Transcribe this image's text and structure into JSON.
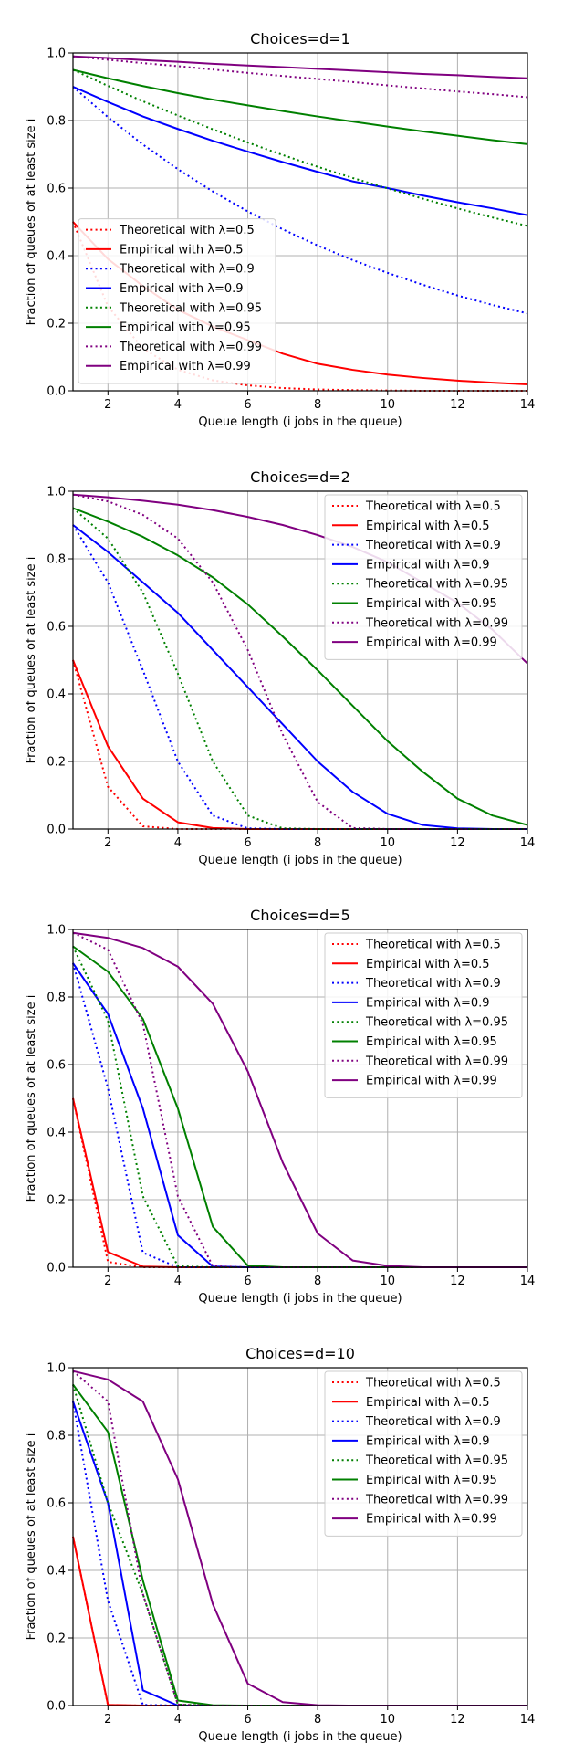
{
  "colors": {
    "red": "#ff0000",
    "blue": "#0000ff",
    "green": "#008000",
    "purple": "#800080",
    "grid": "#b0b0b0"
  },
  "chart_data": [
    {
      "type": "line",
      "title": "Choices=d=1",
      "xlabel": "Queue length (i jobs in the queue)",
      "ylabel": "Fraction of queues of at least size i",
      "xlim": [
        1,
        14
      ],
      "ylim": [
        0,
        1
      ],
      "xticks": [
        2,
        4,
        6,
        8,
        10,
        12,
        14
      ],
      "yticks": [
        0.0,
        0.2,
        0.4,
        0.6,
        0.8,
        1.0
      ],
      "xtick_labels": [
        "2",
        "4",
        "6",
        "8",
        "10",
        "12",
        "14"
      ],
      "ytick_labels": [
        "0.0",
        "0.2",
        "0.4",
        "0.6",
        "0.8",
        "1.0"
      ],
      "grid": true,
      "legend_position": "lower-left",
      "x": [
        1,
        2,
        3,
        4,
        5,
        6,
        7,
        8,
        9,
        10,
        11,
        12,
        13,
        14
      ],
      "series": [
        {
          "name": "Theoretical with λ=0.5",
          "color": "red",
          "style": "dotted",
          "values": [
            0.5,
            0.25,
            0.125,
            0.0625,
            0.031,
            0.016,
            0.008,
            0.004,
            0.002,
            0.001,
            0.0,
            0.0,
            0.0,
            0.0
          ]
        },
        {
          "name": "Empirical with λ=0.5",
          "color": "red",
          "style": "solid",
          "values": [
            0.5,
            0.39,
            0.31,
            0.24,
            0.19,
            0.15,
            0.11,
            0.08,
            0.062,
            0.048,
            0.038,
            0.03,
            0.024,
            0.019
          ]
        },
        {
          "name": "Theoretical with λ=0.9",
          "color": "blue",
          "style": "dotted",
          "values": [
            0.9,
            0.81,
            0.729,
            0.656,
            0.59,
            0.531,
            0.478,
            0.43,
            0.387,
            0.349,
            0.314,
            0.282,
            0.254,
            0.229
          ]
        },
        {
          "name": "Empirical with λ=0.9",
          "color": "blue",
          "style": "solid",
          "values": [
            0.9,
            0.855,
            0.812,
            0.775,
            0.74,
            0.708,
            0.677,
            0.648,
            0.62,
            0.6,
            0.578,
            0.558,
            0.54,
            0.52
          ]
        },
        {
          "name": "Theoretical with λ=0.95",
          "color": "green",
          "style": "dotted",
          "values": [
            0.95,
            0.9025,
            0.857,
            0.815,
            0.774,
            0.735,
            0.698,
            0.663,
            0.63,
            0.599,
            0.569,
            0.54,
            0.513,
            0.488
          ]
        },
        {
          "name": "Empirical with λ=0.95",
          "color": "green",
          "style": "solid",
          "values": [
            0.95,
            0.925,
            0.902,
            0.881,
            0.862,
            0.845,
            0.828,
            0.812,
            0.797,
            0.782,
            0.768,
            0.755,
            0.742,
            0.73
          ]
        },
        {
          "name": "Theoretical with λ=0.99",
          "color": "purple",
          "style": "dotted",
          "values": [
            0.99,
            0.98,
            0.97,
            0.961,
            0.951,
            0.941,
            0.932,
            0.923,
            0.914,
            0.904,
            0.895,
            0.886,
            0.878,
            0.869
          ]
        },
        {
          "name": "Empirical with λ=0.99",
          "color": "purple",
          "style": "solid",
          "values": [
            0.99,
            0.985,
            0.979,
            0.974,
            0.968,
            0.963,
            0.958,
            0.953,
            0.948,
            0.943,
            0.938,
            0.934,
            0.929,
            0.925
          ]
        }
      ]
    },
    {
      "type": "line",
      "title": "Choices=d=2",
      "xlabel": "Queue length (i jobs in the queue)",
      "ylabel": "Fraction of queues of at least size i",
      "xlim": [
        1,
        14
      ],
      "ylim": [
        0,
        1
      ],
      "xticks": [
        2,
        4,
        6,
        8,
        10,
        12,
        14
      ],
      "yticks": [
        0.0,
        0.2,
        0.4,
        0.6,
        0.8,
        1.0
      ],
      "xtick_labels": [
        "2",
        "4",
        "6",
        "8",
        "10",
        "12",
        "14"
      ],
      "ytick_labels": [
        "0.0",
        "0.2",
        "0.4",
        "0.6",
        "0.8",
        "1.0"
      ],
      "grid": true,
      "legend_position": "top-right",
      "x": [
        1,
        2,
        3,
        4,
        5,
        6,
        7,
        8,
        9,
        10,
        11,
        12,
        13,
        14
      ],
      "series": [
        {
          "name": "Theoretical with λ=0.5",
          "color": "red",
          "style": "dotted",
          "values": [
            0.5,
            0.125,
            0.008,
            0.0,
            0.0,
            0.0,
            0.0,
            0.0,
            0.0,
            0.0,
            0.0,
            0.0,
            0.0,
            0.0
          ]
        },
        {
          "name": "Empirical with λ=0.5",
          "color": "red",
          "style": "solid",
          "values": [
            0.5,
            0.245,
            0.09,
            0.02,
            0.003,
            0.0,
            0.0,
            0.0,
            0.0,
            0.0,
            0.0,
            0.0,
            0.0,
            0.0
          ]
        },
        {
          "name": "Theoretical with λ=0.9",
          "color": "blue",
          "style": "dotted",
          "values": [
            0.9,
            0.73,
            0.47,
            0.2,
            0.04,
            0.002,
            0.0,
            0.0,
            0.0,
            0.0,
            0.0,
            0.0,
            0.0,
            0.0
          ]
        },
        {
          "name": "Empirical with λ=0.9",
          "color": "blue",
          "style": "solid",
          "values": [
            0.9,
            0.82,
            0.73,
            0.64,
            0.53,
            0.42,
            0.31,
            0.2,
            0.11,
            0.045,
            0.012,
            0.002,
            0.0,
            0.0
          ]
        },
        {
          "name": "Theoretical with λ=0.95",
          "color": "green",
          "style": "dotted",
          "values": [
            0.95,
            0.86,
            0.7,
            0.46,
            0.2,
            0.04,
            0.002,
            0.0,
            0.0,
            0.0,
            0.0,
            0.0,
            0.0,
            0.0
          ]
        },
        {
          "name": "Empirical with λ=0.95",
          "color": "green",
          "style": "solid",
          "values": [
            0.95,
            0.91,
            0.865,
            0.81,
            0.745,
            0.665,
            0.57,
            0.47,
            0.365,
            0.26,
            0.17,
            0.09,
            0.04,
            0.012
          ]
        },
        {
          "name": "Theoretical with λ=0.99",
          "color": "purple",
          "style": "dotted",
          "values": [
            0.99,
            0.97,
            0.93,
            0.86,
            0.73,
            0.53,
            0.28,
            0.08,
            0.003,
            0.0,
            0.0,
            0.0,
            0.0,
            0.0
          ]
        },
        {
          "name": "Empirical with λ=0.99",
          "color": "purple",
          "style": "solid",
          "values": [
            0.99,
            0.982,
            0.972,
            0.96,
            0.944,
            0.924,
            0.9,
            0.87,
            0.835,
            0.79,
            0.73,
            0.67,
            0.59,
            0.49
          ]
        }
      ]
    },
    {
      "type": "line",
      "title": "Choices=d=5",
      "xlabel": "Queue length (i jobs in the queue)",
      "ylabel": "Fraction of queues of at least size i",
      "xlim": [
        1,
        14
      ],
      "ylim": [
        0,
        1
      ],
      "xticks": [
        2,
        4,
        6,
        8,
        10,
        12,
        14
      ],
      "yticks": [
        0.0,
        0.2,
        0.4,
        0.6,
        0.8,
        1.0
      ],
      "xtick_labels": [
        "2",
        "4",
        "6",
        "8",
        "10",
        "12",
        "14"
      ],
      "ytick_labels": [
        "0.0",
        "0.2",
        "0.4",
        "0.6",
        "0.8",
        "1.0"
      ],
      "grid": true,
      "legend_position": "top-right",
      "x": [
        1,
        2,
        3,
        4,
        5,
        6,
        7,
        8,
        9,
        10,
        11,
        12,
        13,
        14
      ],
      "series": [
        {
          "name": "Theoretical with λ=0.5",
          "color": "red",
          "style": "dotted",
          "values": [
            0.5,
            0.016,
            0.0,
            0.0,
            0.0,
            0.0,
            0.0,
            0.0,
            0.0,
            0.0,
            0.0,
            0.0,
            0.0,
            0.0
          ]
        },
        {
          "name": "Empirical with λ=0.5",
          "color": "red",
          "style": "solid",
          "values": [
            0.5,
            0.045,
            0.002,
            0.0,
            0.0,
            0.0,
            0.0,
            0.0,
            0.0,
            0.0,
            0.0,
            0.0,
            0.0,
            0.0
          ]
        },
        {
          "name": "Theoretical with λ=0.9",
          "color": "blue",
          "style": "dotted",
          "values": [
            0.9,
            0.53,
            0.043,
            0.0,
            0.0,
            0.0,
            0.0,
            0.0,
            0.0,
            0.0,
            0.0,
            0.0,
            0.0,
            0.0
          ]
        },
        {
          "name": "Empirical with λ=0.9",
          "color": "blue",
          "style": "solid",
          "values": [
            0.9,
            0.75,
            0.47,
            0.095,
            0.002,
            0.0,
            0.0,
            0.0,
            0.0,
            0.0,
            0.0,
            0.0,
            0.0,
            0.0
          ]
        },
        {
          "name": "Theoretical with λ=0.95",
          "color": "green",
          "style": "dotted",
          "values": [
            0.95,
            0.73,
            0.21,
            0.003,
            0.0,
            0.0,
            0.0,
            0.0,
            0.0,
            0.0,
            0.0,
            0.0,
            0.0,
            0.0
          ]
        },
        {
          "name": "Empirical with λ=0.95",
          "color": "green",
          "style": "solid",
          "values": [
            0.95,
            0.875,
            0.735,
            0.47,
            0.12,
            0.005,
            0.0,
            0.0,
            0.0,
            0.0,
            0.0,
            0.0,
            0.0,
            0.0
          ]
        },
        {
          "name": "Theoretical with λ=0.99",
          "color": "purple",
          "style": "dotted",
          "values": [
            0.99,
            0.94,
            0.72,
            0.21,
            0.003,
            0.0,
            0.0,
            0.0,
            0.0,
            0.0,
            0.0,
            0.0,
            0.0,
            0.0
          ]
        },
        {
          "name": "Empirical with λ=0.99",
          "color": "purple",
          "style": "solid",
          "values": [
            0.99,
            0.975,
            0.945,
            0.89,
            0.78,
            0.58,
            0.31,
            0.1,
            0.02,
            0.004,
            0.0,
            0.0,
            0.0,
            0.0
          ]
        }
      ]
    },
    {
      "type": "line",
      "title": "Choices=d=10",
      "xlabel": "Queue length (i jobs in the queue)",
      "ylabel": "Fraction of queues of at least size i",
      "xlim": [
        1,
        14
      ],
      "ylim": [
        0,
        1
      ],
      "xticks": [
        2,
        4,
        6,
        8,
        10,
        12,
        14
      ],
      "yticks": [
        0.0,
        0.2,
        0.4,
        0.6,
        0.8,
        1.0
      ],
      "xtick_labels": [
        "2",
        "4",
        "6",
        "8",
        "10",
        "12",
        "14"
      ],
      "ytick_labels": [
        "0.0",
        "0.2",
        "0.4",
        "0.6",
        "0.8",
        "1.0"
      ],
      "grid": true,
      "legend_position": "top-right",
      "x": [
        1,
        2,
        3,
        4,
        5,
        6,
        7,
        8,
        9,
        10,
        11,
        12,
        13,
        14
      ],
      "series": [
        {
          "name": "Theoretical with λ=0.5",
          "color": "red",
          "style": "dotted",
          "values": [
            0.5,
            0.001,
            0.0,
            0.0,
            0.0,
            0.0,
            0.0,
            0.0,
            0.0,
            0.0,
            0.0,
            0.0,
            0.0,
            0.0
          ]
        },
        {
          "name": "Empirical with λ=0.5",
          "color": "red",
          "style": "solid",
          "values": [
            0.5,
            0.002,
            0.0,
            0.0,
            0.0,
            0.0,
            0.0,
            0.0,
            0.0,
            0.0,
            0.0,
            0.0,
            0.0,
            0.0
          ]
        },
        {
          "name": "Theoretical with λ=0.9",
          "color": "blue",
          "style": "dotted",
          "values": [
            0.9,
            0.31,
            0.002,
            0.0,
            0.0,
            0.0,
            0.0,
            0.0,
            0.0,
            0.0,
            0.0,
            0.0,
            0.0,
            0.0
          ]
        },
        {
          "name": "Empirical with λ=0.9",
          "color": "blue",
          "style": "solid",
          "values": [
            0.9,
            0.6,
            0.045,
            0.0,
            0.0,
            0.0,
            0.0,
            0.0,
            0.0,
            0.0,
            0.0,
            0.0,
            0.0,
            0.0
          ]
        },
        {
          "name": "Theoretical with λ=0.95",
          "color": "green",
          "style": "dotted",
          "values": [
            0.95,
            0.6,
            0.33,
            0.003,
            0.0,
            0.0,
            0.0,
            0.0,
            0.0,
            0.0,
            0.0,
            0.0,
            0.0,
            0.0
          ]
        },
        {
          "name": "Empirical with λ=0.95",
          "color": "green",
          "style": "solid",
          "values": [
            0.95,
            0.81,
            0.37,
            0.015,
            0.001,
            0.0,
            0.0,
            0.0,
            0.0,
            0.0,
            0.0,
            0.0,
            0.0,
            0.0
          ]
        },
        {
          "name": "Theoretical with λ=0.99",
          "color": "purple",
          "style": "dotted",
          "values": [
            0.99,
            0.9,
            0.33,
            0.003,
            0.0,
            0.0,
            0.0,
            0.0,
            0.0,
            0.0,
            0.0,
            0.0,
            0.0,
            0.0
          ]
        },
        {
          "name": "Empirical with λ=0.99",
          "color": "purple",
          "style": "solid",
          "values": [
            0.99,
            0.965,
            0.9,
            0.67,
            0.3,
            0.065,
            0.01,
            0.001,
            0.0,
            0.0,
            0.0,
            0.0,
            0.0,
            0.0
          ]
        }
      ]
    }
  ]
}
